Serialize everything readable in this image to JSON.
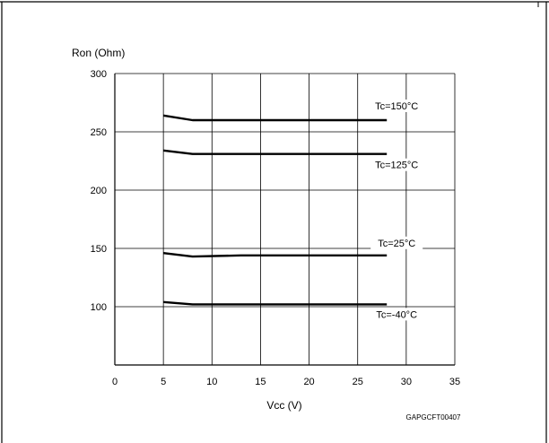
{
  "chart_data": {
    "type": "line",
    "title": "",
    "ylabel": "Ron (Ohm)",
    "xlabel": "Vcc (V)",
    "xlim": [
      0,
      35
    ],
    "ylim": [
      50,
      300
    ],
    "xticks": [
      0,
      5,
      10,
      15,
      20,
      25,
      30,
      35
    ],
    "yticks": [
      100,
      150,
      200,
      250,
      300
    ],
    "grid": true,
    "series": [
      {
        "name": "Tc=150°C",
        "x": [
          5,
          8,
          28
        ],
        "y": [
          264,
          260,
          260
        ]
      },
      {
        "name": "Tc=125°C",
        "x": [
          5,
          8,
          28
        ],
        "y": [
          234,
          231,
          231
        ]
      },
      {
        "name": "Tc=25°C",
        "x": [
          5,
          8,
          13,
          28
        ],
        "y": [
          146,
          143,
          144,
          144
        ]
      },
      {
        "name": "Tc=-40°C",
        "x": [
          5,
          8,
          28
        ],
        "y": [
          104,
          102,
          102
        ]
      }
    ],
    "code": "GAPGCFT00407"
  }
}
